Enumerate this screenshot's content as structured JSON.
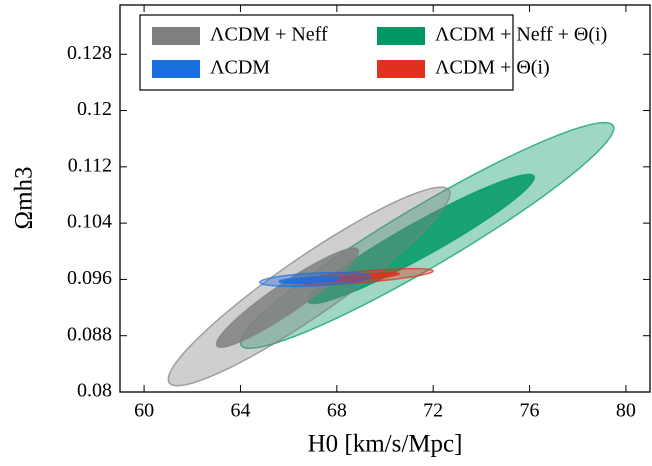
{
  "chart_data": {
    "type": "contour",
    "xlabel": "H0 [km/s/Mpc]",
    "ylabel": "Ωmh3",
    "xlim": [
      59,
      81
    ],
    "ylim": [
      0.08,
      0.135
    ],
    "xticks": [
      60,
      64,
      68,
      72,
      76,
      80
    ],
    "yticks": [
      0.08,
      0.088,
      0.096,
      0.104,
      0.112,
      0.12,
      0.128
    ],
    "legend": "upper left",
    "series": [
      {
        "name": "ΛCDM + Neff + Θ(i)",
        "color": "#009966",
        "contours": [
          {
            "x": [
              64,
              79.5
            ],
            "y": [
              0.087,
              0.1175
            ],
            "half_width": 0.005
          },
          {
            "x": [
              66.8,
              76.2
            ],
            "y": [
              0.093,
              0.1105
            ],
            "half_width": 0.0028
          }
        ]
      },
      {
        "name": "ΛCDM + Neff",
        "color": "#808080",
        "contours": [
          {
            "x": [
              61,
              72.7
            ],
            "y": [
              0.0818,
              0.1082
            ],
            "half_width": 0.005
          },
          {
            "x": [
              63,
              68.9
            ],
            "y": [
              0.0868,
              0.1
            ],
            "half_width": 0.0025
          }
        ]
      },
      {
        "name": "ΛCDM + Θ(i)",
        "color": "#e03020",
        "contours": [
          {
            "x": [
              66.4,
              72
            ],
            "y": [
              0.0956,
              0.0972
            ],
            "half_width": 0.0008
          },
          {
            "x": [
              67.3,
              70.6
            ],
            "y": [
              0.0958,
              0.0968
            ],
            "half_width": 0.0004
          }
        ]
      },
      {
        "name": "ΛCDM",
        "color": "#1a6fdf",
        "contours": [
          {
            "x": [
              64.8,
              69.4
            ],
            "y": [
              0.0956,
              0.0964
            ],
            "half_width": 0.0009
          },
          {
            "x": [
              65.6,
              68.1
            ],
            "y": [
              0.0957,
              0.0961
            ],
            "half_width": 0.0004
          }
        ]
      }
    ]
  }
}
